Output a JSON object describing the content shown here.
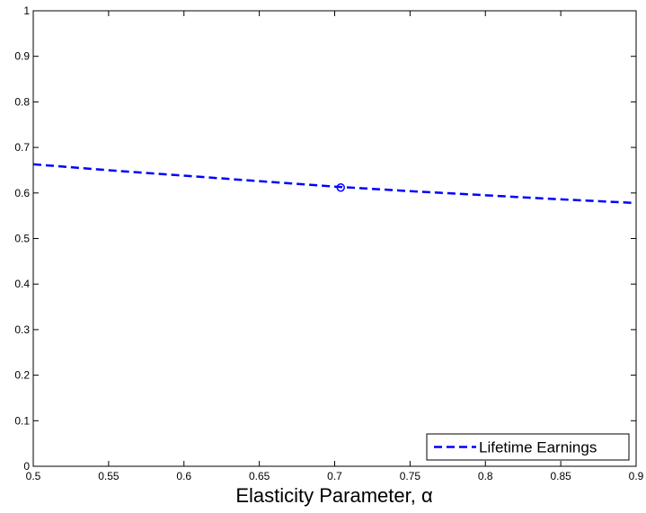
{
  "chart_data": {
    "type": "line",
    "x_label": "Elasticity Parameter, α",
    "x": [
      0.5,
      0.55,
      0.6,
      0.65,
      0.7,
      0.75,
      0.8,
      0.85,
      0.9
    ],
    "series": [
      {
        "name": "Lifetime Earnings",
        "color": "#0000ff",
        "values": [
          0.663,
          0.65,
          0.638,
          0.626,
          0.614,
          0.604,
          0.595,
          0.586,
          0.578
        ]
      }
    ],
    "marker": {
      "x": 0.704,
      "y": 0.612,
      "color": "#0000ff"
    },
    "xlim": [
      0.5,
      0.9
    ],
    "xticks": [
      0.5,
      0.55,
      0.6,
      0.65,
      0.7,
      0.75,
      0.8,
      0.85,
      0.9
    ],
    "ylim": [
      0,
      1
    ],
    "yticks": [
      0,
      0.1,
      0.2,
      0.3,
      0.4,
      0.5,
      0.6,
      0.7,
      0.8,
      0.9,
      1
    ],
    "legend": "lower right"
  }
}
